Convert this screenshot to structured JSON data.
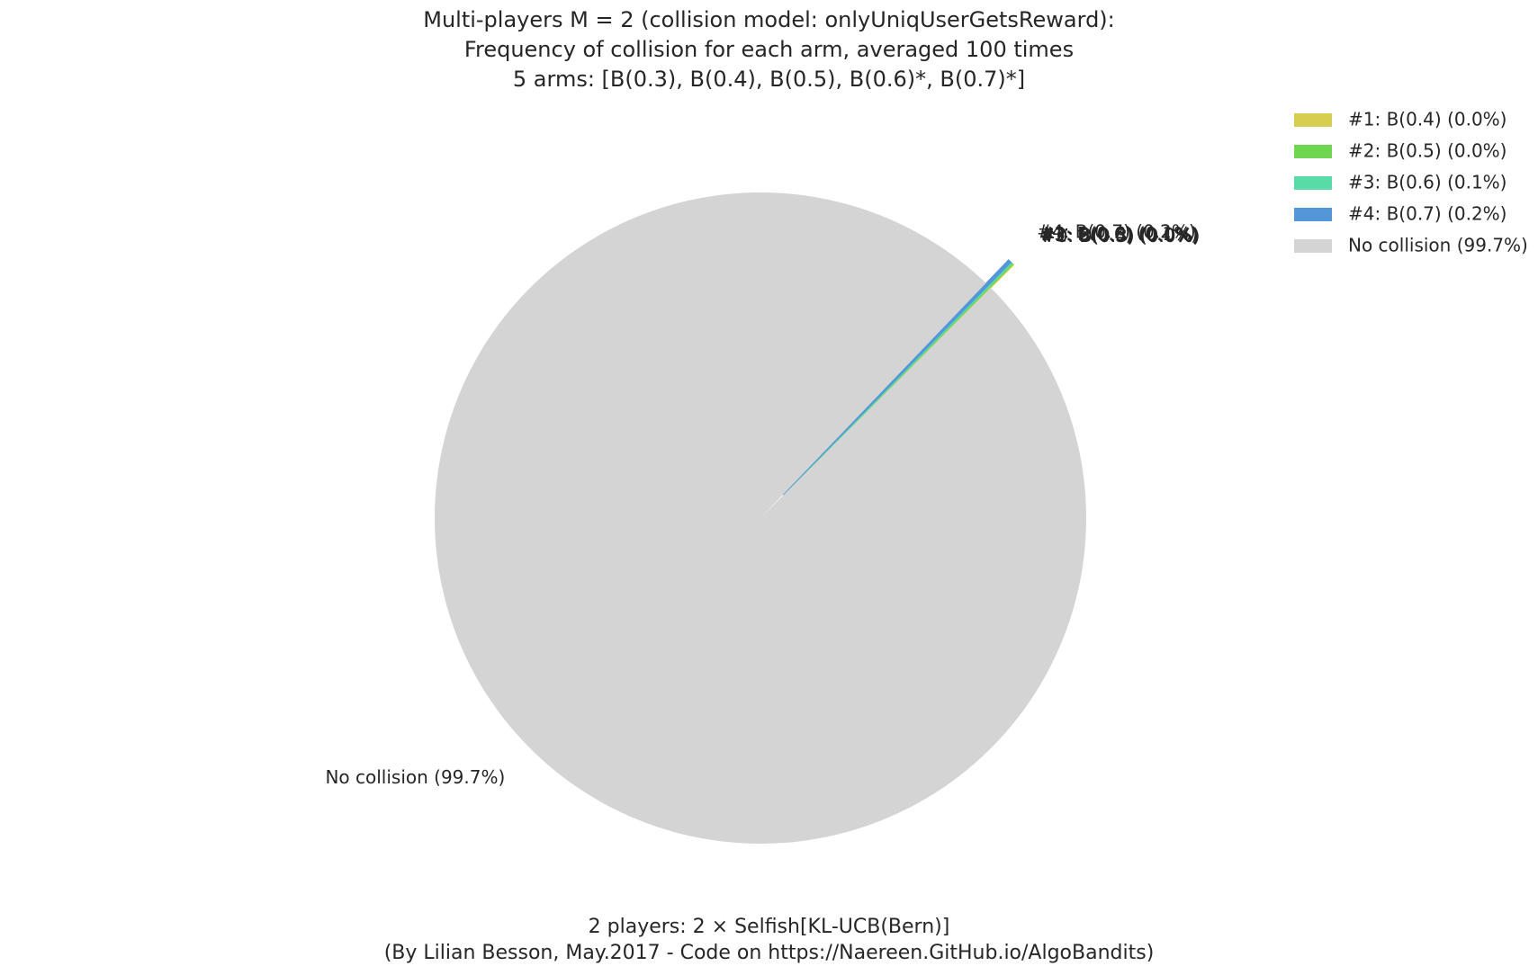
{
  "chart_data": {
    "type": "pie",
    "title_lines": [
      "Multi-players M = 2 (collision model: onlyUniqUserGetsReward):",
      "Frequency of collision for each arm, averaged 100 times",
      "5 arms: [B(0.3), B(0.4), B(0.5), B(0.6)*, B(0.7)*]"
    ],
    "caption_lines": [
      "2 players: 2 × Selfish[KL-UCB(Bern)]",
      "(By Lilian Besson, May.2017 - Code on https://Naereen.GitHub.io/AlgoBandits)"
    ],
    "legend_position": "top-right",
    "start_angle_deg": 45,
    "slices": [
      {
        "label": "#0: B(0.3) (0.0%)",
        "value": 0.02,
        "color": "#e8d54a",
        "explode": true,
        "legend": false
      },
      {
        "label": "#1: B(0.4) (0.0%)",
        "value": 0.03,
        "color": "#d7cd4f",
        "explode": true,
        "legend": true
      },
      {
        "label": "#2: B(0.5) (0.0%)",
        "value": 0.04,
        "color": "#6fd650",
        "explode": true,
        "legend": true
      },
      {
        "label": "#3: B(0.6) (0.1%)",
        "value": 0.08,
        "color": "#58dba7",
        "explode": true,
        "legend": true
      },
      {
        "label": "#4: B(0.7) (0.2%)",
        "value": 0.16,
        "color": "#5497d9",
        "explode": true,
        "legend": true
      },
      {
        "label": "No collision (99.7%)",
        "value": 99.67,
        "color": "#d4d4d4",
        "explode": false,
        "legend": true
      }
    ]
  }
}
